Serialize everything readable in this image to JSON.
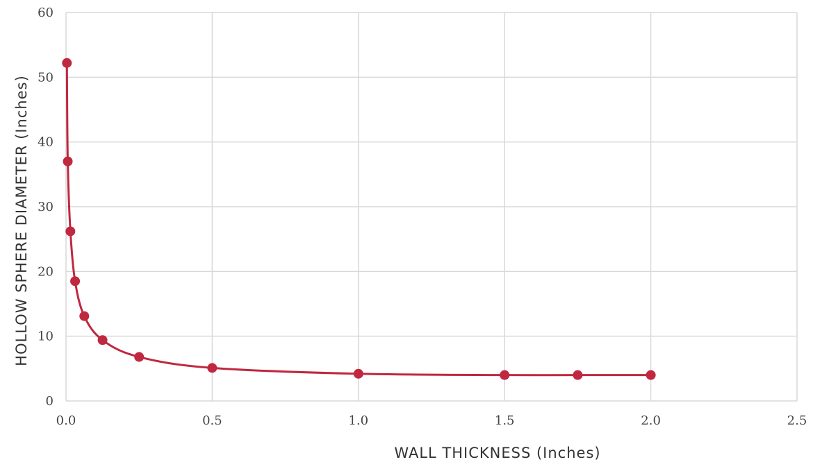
{
  "chart_data": {
    "type": "scatter",
    "title": "",
    "xlabel": "WALL THICKNESS (Inches)",
    "ylabel": "HOLLOW SPHERE DIAMETER (Inches)",
    "xlim": [
      0,
      2.5
    ],
    "ylim": [
      0,
      60
    ],
    "x_ticks": [
      0,
      0.5,
      1,
      1.5,
      2,
      2.5
    ],
    "x_tick_labels": [
      "0.0",
      "0.5",
      "1.0",
      "1.5",
      "2.0",
      "2.5"
    ],
    "y_ticks": [
      0,
      10,
      20,
      30,
      40,
      50,
      60
    ],
    "y_tick_labels": [
      "0",
      "10",
      "20",
      "30",
      "40",
      "50",
      "60"
    ],
    "grid": true,
    "legend": "none",
    "smooth_line": true,
    "series": [
      {
        "color": "#c0283f",
        "x": [
          0.003,
          0.006,
          0.015,
          0.031,
          0.0625,
          0.125,
          0.25,
          0.5,
          1.0,
          1.5,
          1.75,
          2.0
        ],
        "y": [
          52.2,
          37.0,
          26.2,
          18.5,
          13.1,
          9.4,
          6.8,
          5.1,
          4.2,
          4.0,
          4.0,
          4.0
        ]
      }
    ]
  }
}
